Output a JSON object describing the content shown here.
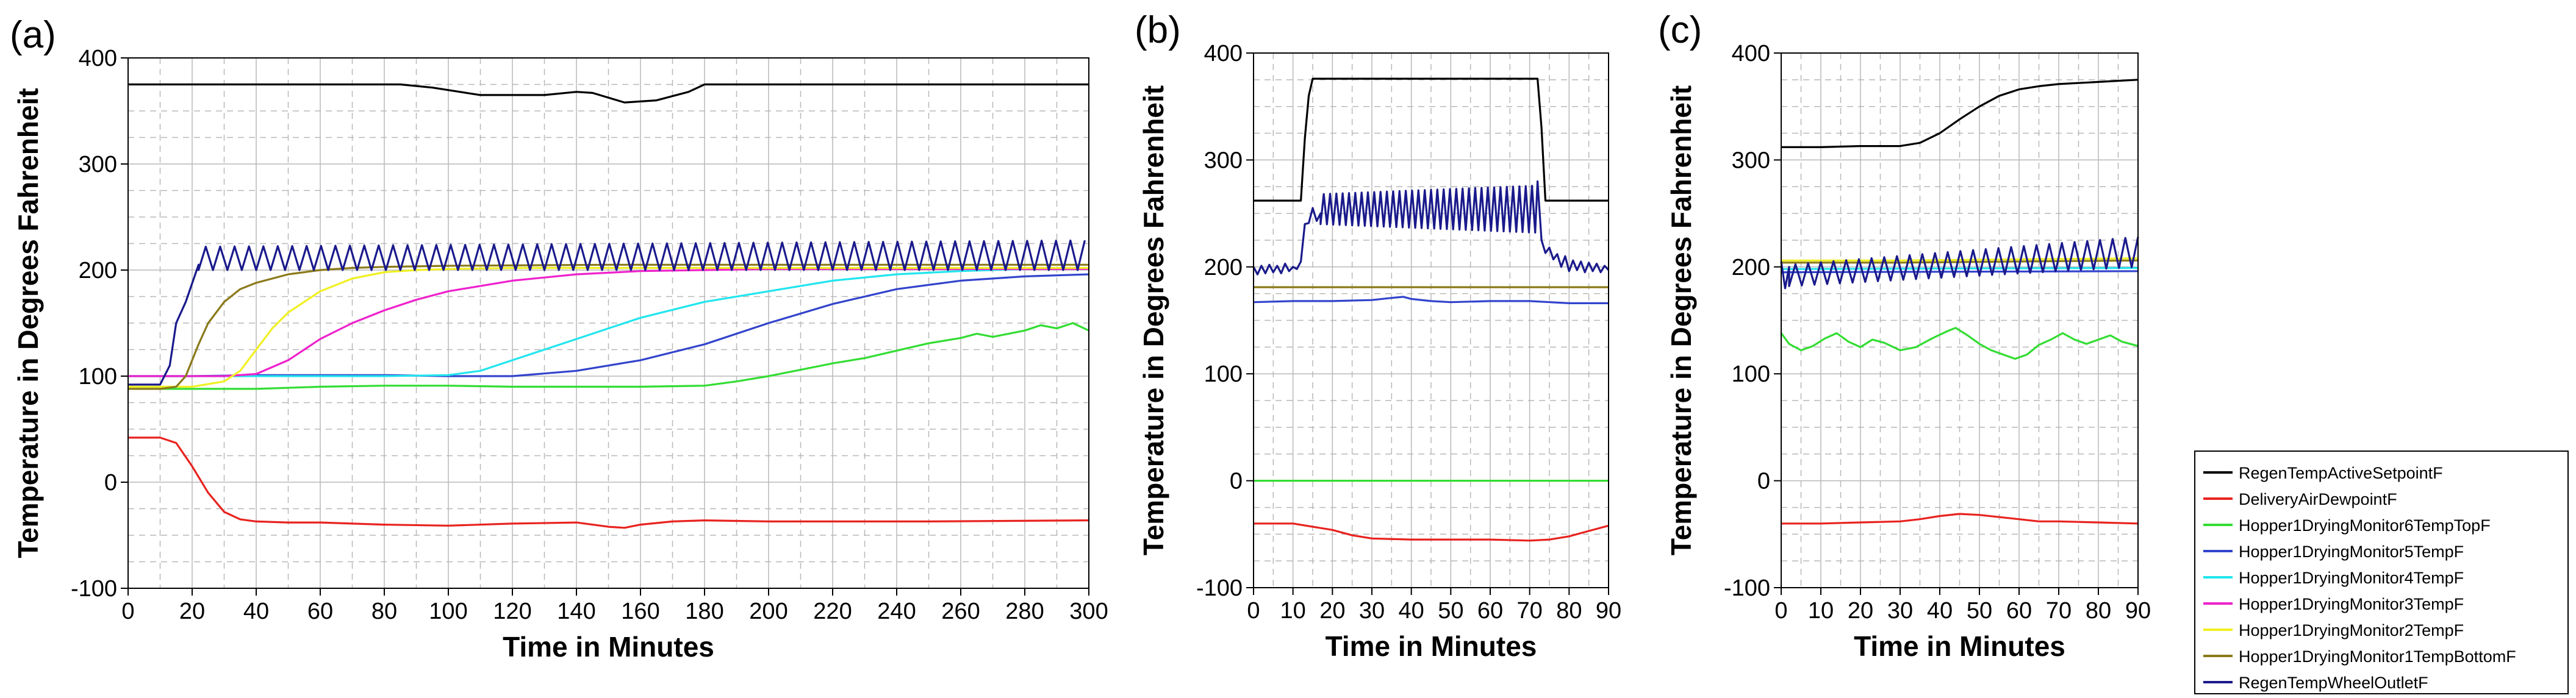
{
  "colors": {
    "RegenTempActiveSetpointF": "#000000",
    "DeliveryAirDewpointF": "#e8231f",
    "Hopper1DryingMonitor6TempTopF": "#33dd33",
    "Hopper1DryingMonitor5TempF": "#3344cc",
    "Hopper1DryingMonitor4TempF": "#22e5ee",
    "Hopper1DryingMonitor3TempF": "#ee22cc",
    "Hopper1DryingMonitor2TempF": "#f0f022",
    "Hopper1DryingMonitor1TempBottomF": "#8a7a1a",
    "RegenTempWheelOutletF": "#1a1a8c"
  },
  "legend": {
    "placement": "bottom-right",
    "entries": [
      "RegenTempActiveSetpointF",
      "DeliveryAirDewpointF",
      "Hopper1DryingMonitor6TempTopF",
      "Hopper1DryingMonitor5TempF",
      "Hopper1DryingMonitor4TempF",
      "Hopper1DryingMonitor3TempF",
      "Hopper1DryingMonitor2TempF",
      "Hopper1DryingMonitor1TempBottomF",
      "RegenTempWheelOutletF"
    ]
  },
  "chart_data": [
    {
      "panel": "(a)",
      "type": "line",
      "xlabel": "Time in Minutes",
      "ylabel": "Temperature in Degrees Fahrenheit",
      "xlim": [
        0,
        300
      ],
      "ylim": [
        -100,
        400
      ],
      "xticks": [
        0,
        20,
        40,
        60,
        80,
        100,
        120,
        140,
        160,
        180,
        200,
        220,
        240,
        260,
        280,
        300
      ],
      "yticks": [
        -100,
        0,
        100,
        200,
        300,
        400
      ],
      "grid": true,
      "series": [
        {
          "name": "RegenTempActiveSetpointF",
          "x": [
            0,
            85,
            95,
            110,
            130,
            140,
            145,
            155,
            165,
            175,
            180,
            300
          ],
          "y": [
            375,
            375,
            372,
            365,
            365,
            368,
            367,
            358,
            360,
            368,
            375,
            375
          ]
        },
        {
          "name": "DeliveryAirDewpointF",
          "x": [
            0,
            10,
            15,
            20,
            25,
            30,
            35,
            40,
            50,
            60,
            80,
            100,
            120,
            140,
            150,
            155,
            160,
            170,
            180,
            200,
            250,
            300
          ],
          "y": [
            42,
            42,
            37,
            15,
            -10,
            -28,
            -35,
            -37,
            -38,
            -38,
            -40,
            -41,
            -39,
            -38,
            -42,
            -43,
            -40,
            -37,
            -36,
            -37,
            -37,
            -36
          ]
        },
        {
          "name": "Hopper1DryingMonitor6TempTopF",
          "x": [
            0,
            40,
            60,
            80,
            100,
            120,
            140,
            160,
            180,
            190,
            200,
            210,
            220,
            230,
            240,
            250,
            260,
            265,
            270,
            280,
            285,
            290,
            295,
            300
          ],
          "y": [
            88,
            88,
            90,
            91,
            91,
            90,
            90,
            90,
            91,
            95,
            100,
            106,
            112,
            117,
            124,
            131,
            136,
            140,
            137,
            143,
            148,
            145,
            150,
            143
          ]
        },
        {
          "name": "Hopper1DryingMonitor5TempF",
          "x": [
            0,
            20,
            40,
            60,
            80,
            100,
            120,
            140,
            160,
            180,
            200,
            220,
            240,
            260,
            280,
            300
          ],
          "y": [
            100,
            100,
            101,
            101,
            101,
            100,
            100,
            105,
            115,
            130,
            150,
            168,
            182,
            190,
            194,
            196
          ]
        },
        {
          "name": "Hopper1DryingMonitor4TempF",
          "x": [
            0,
            40,
            60,
            80,
            100,
            110,
            120,
            140,
            160,
            180,
            200,
            220,
            240,
            260,
            280,
            300
          ],
          "y": [
            100,
            100,
            100,
            100,
            101,
            105,
            115,
            135,
            155,
            170,
            180,
            190,
            196,
            199,
            201,
            201
          ]
        },
        {
          "name": "Hopper1DryingMonitor3TempF",
          "x": [
            0,
            20,
            30,
            40,
            50,
            60,
            70,
            80,
            90,
            100,
            120,
            140,
            160,
            180,
            200,
            240,
            300
          ],
          "y": [
            100,
            100,
            100,
            102,
            115,
            135,
            150,
            162,
            172,
            180,
            190,
            196,
            199,
            200,
            201,
            201,
            201
          ]
        },
        {
          "name": "Hopper1DryingMonitor2TempF",
          "x": [
            0,
            20,
            30,
            35,
            40,
            45,
            50,
            60,
            70,
            80,
            90,
            100,
            120,
            160,
            200,
            300
          ],
          "y": [
            90,
            90,
            95,
            105,
            125,
            145,
            160,
            180,
            192,
            198,
            200,
            201,
            202,
            202,
            202,
            202
          ]
        },
        {
          "name": "Hopper1DryingMonitor1TempBottomF",
          "x": [
            0,
            10,
            15,
            18,
            20,
            22,
            25,
            30,
            35,
            40,
            50,
            60,
            70,
            80,
            100,
            150,
            200,
            300
          ],
          "y": [
            88,
            88,
            90,
            100,
            115,
            130,
            150,
            170,
            182,
            188,
            196,
            200,
            202,
            203,
            204,
            205,
            205,
            205
          ]
        },
        {
          "name": "RegenTempWheelOutletF",
          "x": [
            0,
            10,
            13,
            15,
            18,
            22
          ],
          "y": [
            92,
            92,
            110,
            150,
            170,
            205
          ],
          "pattern": {
            "x_start": 22,
            "x_end": 300,
            "period": 4.5,
            "low": 200,
            "high_start": 222,
            "high_end": 228
          }
        }
      ]
    },
    {
      "panel": "(b)",
      "type": "line",
      "xlabel": "Time in Minutes",
      "ylabel": "Temperature in Degrees Fahrenheit",
      "xlim": [
        0,
        90
      ],
      "ylim": [
        -100,
        400
      ],
      "xticks": [
        0,
        10,
        20,
        30,
        40,
        50,
        60,
        70,
        80,
        90
      ],
      "yticks": [
        -100,
        0,
        100,
        200,
        300,
        400
      ],
      "grid": true,
      "series": [
        {
          "name": "RegenTempActiveSetpointF",
          "x": [
            0,
            12,
            13,
            14,
            15,
            72,
            73,
            74,
            90
          ],
          "y": [
            262,
            262,
            320,
            360,
            376,
            376,
            330,
            262,
            262
          ]
        },
        {
          "name": "DeliveryAirDewpointF",
          "x": [
            0,
            10,
            20,
            25,
            30,
            40,
            50,
            60,
            70,
            75,
            80,
            85,
            90
          ],
          "y": [
            -40,
            -40,
            -46,
            -51,
            -54,
            -55,
            -55,
            -55,
            -56,
            -55,
            -52,
            -47,
            -42
          ]
        },
        {
          "name": "Hopper1DryingMonitor6TempTopF",
          "x": [
            0,
            90
          ],
          "y": [
            0,
            0
          ]
        },
        {
          "name": "Hopper1DryingMonitor5TempF",
          "x": [
            0,
            10,
            20,
            30,
            35,
            38,
            40,
            45,
            50,
            60,
            70,
            80,
            90
          ],
          "y": [
            167,
            168,
            168,
            169,
            171,
            172,
            170,
            168,
            167,
            168,
            168,
            166,
            166
          ]
        },
        {
          "name": "Hopper1DryingMonitor1TempBottomF",
          "x": [
            0,
            90
          ],
          "y": [
            181,
            181
          ]
        },
        {
          "name": "RegenTempWheelOutletF",
          "x": [
            0,
            1,
            2,
            3,
            4,
            5,
            6,
            7,
            8,
            9,
            10,
            11,
            12,
            13,
            14,
            15,
            16,
            17
          ],
          "y": [
            200,
            193,
            201,
            194,
            202,
            195,
            201,
            194,
            203,
            196,
            200,
            198,
            205,
            240,
            241,
            255,
            243,
            250
          ],
          "pattern": {
            "x_start": 17,
            "x_end": 72,
            "period": 1.6,
            "low_start": 240,
            "low_end": 232,
            "high_start": 268,
            "high_end": 276
          },
          "tail": {
            "x": [
              72,
              73,
              74,
              75,
              76,
              77,
              78,
              79,
              80,
              81,
              82,
              83,
              84,
              85,
              86,
              87,
              88,
              89,
              90
            ],
            "y": [
              280,
              225,
              213,
              218,
              207,
              212,
              200,
              210,
              196,
              206,
              197,
              205,
              195,
              204,
              196,
              203,
              195,
              201,
              197
            ]
          }
        }
      ]
    },
    {
      "panel": "(c)",
      "type": "line",
      "xlabel": "Time in Minutes",
      "ylabel": "Temperature in Degrees Fahrenheit",
      "xlim": [
        0,
        90
      ],
      "ylim": [
        -100,
        400
      ],
      "xticks": [
        0,
        10,
        20,
        30,
        40,
        50,
        60,
        70,
        80,
        90
      ],
      "yticks": [
        -100,
        0,
        100,
        200,
        300,
        400
      ],
      "grid": true,
      "series": [
        {
          "name": "RegenTempActiveSetpointF",
          "x": [
            0,
            10,
            20,
            30,
            35,
            40,
            45,
            50,
            55,
            60,
            65,
            70,
            80,
            90
          ],
          "y": [
            312,
            312,
            313,
            313,
            316,
            325,
            338,
            350,
            360,
            366,
            369,
            371,
            373,
            375
          ]
        },
        {
          "name": "DeliveryAirDewpointF",
          "x": [
            0,
            10,
            20,
            30,
            35,
            40,
            45,
            50,
            55,
            60,
            65,
            70,
            80,
            90
          ],
          "y": [
            -40,
            -40,
            -39,
            -38,
            -36,
            -33,
            -31,
            -32,
            -34,
            -36,
            -38,
            -38,
            -39,
            -40
          ]
        },
        {
          "name": "Hopper1DryingMonitor6TempTopF",
          "x": [
            0,
            2,
            5,
            8,
            11,
            14,
            17,
            20,
            23,
            26,
            30,
            34,
            38,
            42,
            44,
            47,
            50,
            53,
            56,
            59,
            62,
            65,
            68,
            71,
            74,
            77,
            80,
            83,
            86,
            90
          ],
          "y": [
            138,
            128,
            122,
            126,
            133,
            138,
            130,
            125,
            132,
            129,
            122,
            125,
            133,
            140,
            143,
            136,
            128,
            122,
            118,
            114,
            118,
            127,
            132,
            138,
            132,
            128,
            132,
            136,
            130,
            126
          ]
        },
        {
          "name": "Hopper1DryingMonitor5TempF",
          "x": [
            0,
            90
          ],
          "y": [
            195,
            196
          ]
        },
        {
          "name": "Hopper1DryingMonitor4TempF",
          "x": [
            0,
            90
          ],
          "y": [
            198,
            199
          ]
        },
        {
          "name": "Hopper1DryingMonitor2TempF",
          "x": [
            0,
            30,
            60,
            90
          ],
          "y": [
            206,
            206,
            207,
            208
          ]
        },
        {
          "name": "Hopper1DryingMonitor1TempBottomF",
          "x": [
            0,
            30,
            60,
            90
          ],
          "y": [
            204,
            204,
            205,
            206
          ]
        },
        {
          "name": "RegenTempWheelOutletF",
          "x": [
            0,
            1,
            2
          ],
          "y": [
            205,
            180,
            200
          ],
          "pattern": {
            "x_start": 2,
            "x_end": 90,
            "period": 3.2,
            "low_start": 182,
            "low_end": 200,
            "high_start": 202,
            "high_end": 228
          }
        }
      ]
    }
  ]
}
